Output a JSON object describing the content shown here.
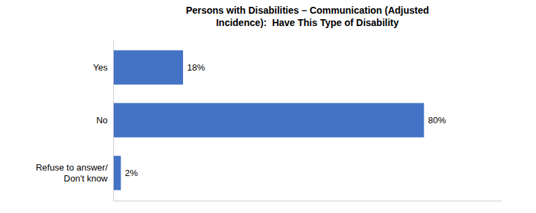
{
  "chart_data": {
    "type": "bar",
    "orientation": "horizontal",
    "title": "Persons with Disabilities – Communication (Adjusted\nIncidence):  Have This Type of Disability",
    "categories": [
      "Yes",
      "No",
      "Refuse to answer/\nDon't know"
    ],
    "values": [
      18,
      80,
      2
    ],
    "value_labels": [
      "18%",
      "80%",
      "2%"
    ],
    "data_labels": true,
    "color": "#4472C4",
    "xlim": [
      0,
      100
    ],
    "tick_labels": "y"
  }
}
